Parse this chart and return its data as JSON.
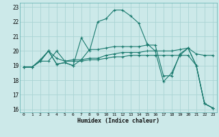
{
  "title": "",
  "xlabel": "Humidex (Indice chaleur)",
  "xlim": [
    -0.5,
    23.5
  ],
  "ylim": [
    15.8,
    23.3
  ],
  "yticks": [
    16,
    17,
    18,
    19,
    20,
    21,
    22,
    23
  ],
  "xticks": [
    0,
    1,
    2,
    3,
    4,
    5,
    6,
    7,
    8,
    9,
    10,
    11,
    12,
    13,
    14,
    15,
    16,
    17,
    18,
    19,
    20,
    21,
    22,
    23
  ],
  "bg_color": "#cce9e9",
  "grid_color": "#aad4d4",
  "line_color": "#1a7a6e",
  "lines": [
    {
      "x": [
        0,
        1,
        2,
        3,
        4,
        5,
        6,
        7,
        8,
        9,
        10,
        11,
        12,
        13,
        14,
        15,
        16,
        17,
        18,
        19,
        20,
        21,
        22,
        23
      ],
      "y": [
        18.9,
        18.9,
        19.3,
        20.0,
        19.1,
        19.2,
        19.0,
        20.9,
        20.0,
        22.0,
        22.2,
        22.8,
        22.8,
        22.4,
        21.9,
        20.5,
        20.0,
        17.9,
        18.5,
        19.7,
        20.2,
        19.0,
        16.4,
        16.1
      ]
    },
    {
      "x": [
        0,
        1,
        2,
        3,
        4,
        5,
        6,
        7,
        8,
        9,
        10,
        11,
        12,
        13,
        14,
        15,
        16,
        17,
        18,
        19,
        20,
        21,
        22,
        23
      ],
      "y": [
        18.9,
        18.9,
        19.4,
        20.0,
        19.5,
        19.3,
        19.4,
        19.4,
        19.5,
        19.5,
        19.7,
        19.8,
        19.9,
        19.9,
        19.9,
        20.0,
        20.0,
        20.0,
        20.0,
        20.1,
        20.2,
        19.8,
        19.7,
        19.7
      ]
    },
    {
      "x": [
        0,
        1,
        2,
        3,
        4,
        5,
        6,
        7,
        8,
        9,
        10,
        11,
        12,
        13,
        14,
        15,
        16,
        17,
        18,
        19,
        20,
        21,
        22,
        23
      ],
      "y": [
        18.9,
        18.9,
        19.3,
        19.3,
        20.0,
        19.3,
        19.3,
        19.3,
        19.4,
        19.4,
        19.5,
        19.6,
        19.6,
        19.7,
        19.7,
        19.7,
        19.7,
        19.7,
        19.7,
        19.7,
        19.7,
        19.0,
        16.4,
        16.1
      ]
    },
    {
      "x": [
        0,
        1,
        2,
        3,
        4,
        5,
        6,
        7,
        8,
        9,
        10,
        11,
        12,
        13,
        14,
        15,
        16,
        17,
        18,
        19,
        20,
        21,
        22,
        23
      ],
      "y": [
        18.9,
        18.9,
        19.3,
        20.0,
        19.1,
        19.2,
        19.0,
        19.4,
        20.1,
        20.1,
        20.2,
        20.3,
        20.3,
        20.3,
        20.3,
        20.4,
        20.4,
        18.3,
        18.3,
        19.8,
        20.2,
        19.0,
        16.4,
        16.1
      ]
    }
  ]
}
